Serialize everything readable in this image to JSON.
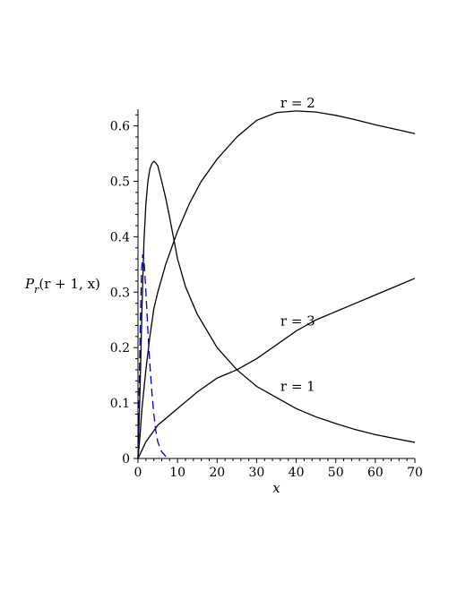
{
  "chart_data": {
    "type": "line",
    "xlabel": "x",
    "ylabel": {
      "main": "P",
      "sub": "r",
      "args": "(r + 1, x)"
    },
    "xlim": [
      0,
      70
    ],
    "ylim": [
      0,
      0.63
    ],
    "xticks": [
      0,
      10,
      20,
      30,
      40,
      50,
      60,
      70
    ],
    "yticks": [
      0,
      0.1,
      0.2,
      0.3,
      0.4,
      0.5,
      0.6
    ],
    "xtick_labels": [
      "0",
      "10",
      "20",
      "30",
      "40",
      "50",
      "60",
      "70"
    ],
    "ytick_labels": [
      "0",
      "0.1",
      "0.2",
      "0.3",
      "0.4",
      "0.5",
      "0.6"
    ],
    "grid": false,
    "series": [
      {
        "name": "r = 2",
        "color": "#000000",
        "dashed": false,
        "points": [
          [
            0,
            0
          ],
          [
            0.5,
            0.04
          ],
          [
            1,
            0.09
          ],
          [
            2,
            0.16
          ],
          [
            3,
            0.22
          ],
          [
            4,
            0.27
          ],
          [
            5,
            0.3
          ],
          [
            7,
            0.35
          ],
          [
            10,
            0.41
          ],
          [
            13,
            0.46
          ],
          [
            16,
            0.5
          ],
          [
            20,
            0.54
          ],
          [
            25,
            0.58
          ],
          [
            30,
            0.61
          ],
          [
            35,
            0.624
          ],
          [
            40,
            0.627
          ],
          [
            45,
            0.625
          ],
          [
            50,
            0.619
          ],
          [
            55,
            0.611
          ],
          [
            60,
            0.602
          ],
          [
            65,
            0.594
          ],
          [
            70,
            0.586
          ]
        ]
      },
      {
        "name": "r = 1",
        "color": "#000000",
        "dashed": false,
        "points": [
          [
            0,
            0
          ],
          [
            0.5,
            0.12
          ],
          [
            1,
            0.27
          ],
          [
            1.5,
            0.39
          ],
          [
            2,
            0.46
          ],
          [
            2.5,
            0.5
          ],
          [
            3,
            0.522
          ],
          [
            3.5,
            0.532
          ],
          [
            4,
            0.536
          ],
          [
            4.5,
            0.533
          ],
          [
            5,
            0.528
          ],
          [
            6,
            0.5
          ],
          [
            7,
            0.47
          ],
          [
            8,
            0.435
          ],
          [
            10,
            0.36
          ],
          [
            12,
            0.31
          ],
          [
            15,
            0.26
          ],
          [
            20,
            0.2
          ],
          [
            25,
            0.16
          ],
          [
            30,
            0.13
          ],
          [
            35,
            0.11
          ],
          [
            40,
            0.09
          ],
          [
            45,
            0.075
          ],
          [
            50,
            0.063
          ],
          [
            55,
            0.052
          ],
          [
            60,
            0.043
          ],
          [
            65,
            0.036
          ],
          [
            70,
            0.029
          ]
        ]
      },
      {
        "name": "r = 3",
        "color": "#000000",
        "dashed": false,
        "points": [
          [
            0,
            0
          ],
          [
            2,
            0.03
          ],
          [
            5,
            0.06
          ],
          [
            10,
            0.09
          ],
          [
            15,
            0.12
          ],
          [
            20,
            0.145
          ],
          [
            25,
            0.16
          ],
          [
            30,
            0.18
          ],
          [
            35,
            0.205
          ],
          [
            40,
            0.23
          ],
          [
            45,
            0.25
          ],
          [
            50,
            0.265
          ],
          [
            55,
            0.28
          ],
          [
            60,
            0.295
          ],
          [
            65,
            0.31
          ],
          [
            70,
            0.325
          ]
        ]
      },
      {
        "name": "",
        "color": "#0000cc",
        "dashed": true,
        "points": [
          [
            0,
            0
          ],
          [
            0.3,
            0.12
          ],
          [
            0.6,
            0.25
          ],
          [
            0.9,
            0.34
          ],
          [
            1.2,
            0.368
          ],
          [
            1.5,
            0.36
          ],
          [
            2,
            0.3
          ],
          [
            2.5,
            0.23
          ],
          [
            3,
            0.17
          ],
          [
            3.5,
            0.12
          ],
          [
            4,
            0.08
          ],
          [
            4.5,
            0.05
          ],
          [
            5,
            0.03
          ],
          [
            6,
            0.012
          ],
          [
            7,
            0.004
          ],
          [
            8,
            0
          ]
        ]
      }
    ],
    "annotations": [
      {
        "text": "r = 2",
        "x": 36,
        "y": 0.633
      },
      {
        "text": "r = 3",
        "x": 36,
        "y": 0.24
      },
      {
        "text": "r = 1",
        "x": 36,
        "y": 0.122
      }
    ]
  }
}
